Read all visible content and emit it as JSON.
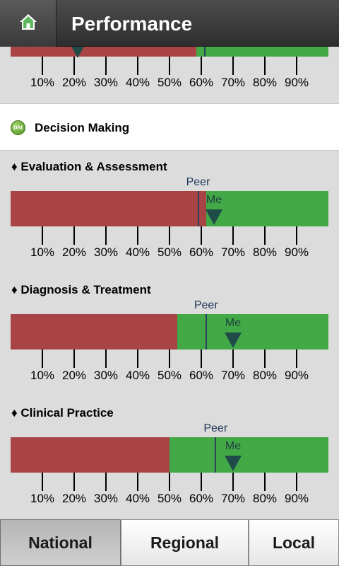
{
  "header": {
    "title": "Performance",
    "home_icon": "home-icon"
  },
  "category": {
    "badge": "DM",
    "label": "Decision Making"
  },
  "tick_labels": [
    "10%",
    "20%",
    "30%",
    "40%",
    "50%",
    "60%",
    "70%",
    "80%",
    "90%"
  ],
  "metrics": [
    {
      "label": "",
      "red_pct": 58.5,
      "peer_pct": 61,
      "me_pct": 21,
      "peer_text": "",
      "me_text": ""
    },
    {
      "label": "♦ Evaluation & Assessment",
      "red_pct": 61.5,
      "peer_pct": 59,
      "me_pct": 64,
      "peer_text": "Peer",
      "me_text": "Me"
    },
    {
      "label": "♦ Diagnosis & Treatment",
      "red_pct": 52.5,
      "peer_pct": 61.5,
      "me_pct": 70,
      "peer_text": "Peer",
      "me_text": "Me"
    },
    {
      "label": "♦ Clinical Practice",
      "red_pct": 50,
      "peer_pct": 64.5,
      "me_pct": 70,
      "peer_text": "Peer",
      "me_text": "Me"
    }
  ],
  "colors": {
    "below": "#a84446",
    "above": "#42a946",
    "peer": "#2e3f5e",
    "me": "#1f4c49"
  },
  "tabs": [
    {
      "label": "National",
      "active": true
    },
    {
      "label": "Regional",
      "active": false
    },
    {
      "label": "Local",
      "active": false
    }
  ]
}
